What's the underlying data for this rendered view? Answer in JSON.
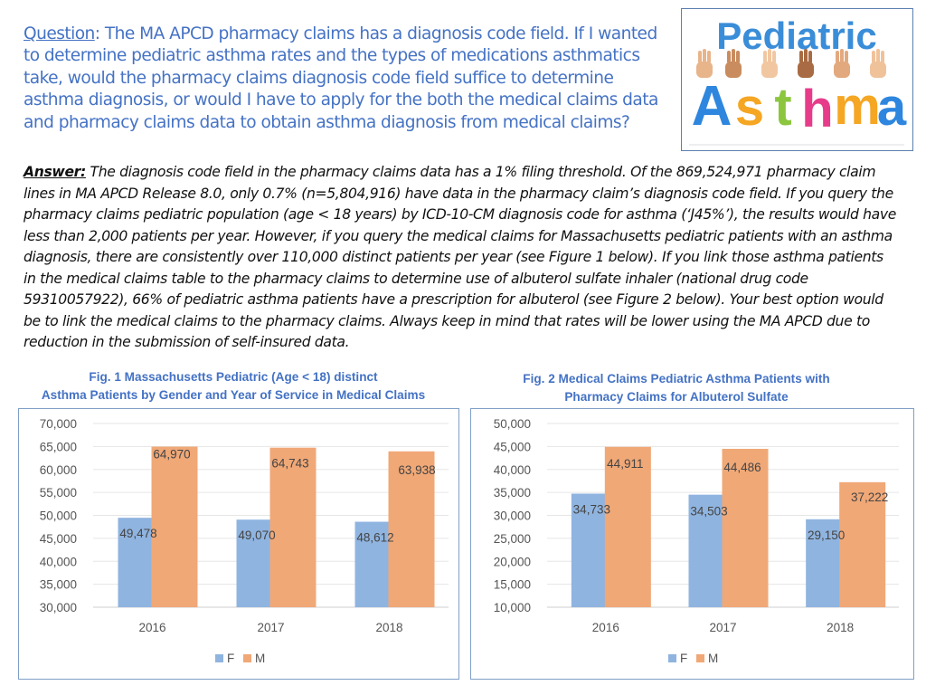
{
  "question": {
    "lead": "Question",
    "text": ": The MA APCD pharmacy claims has a diagnosis code field. If I wanted to determine pediatric asthma rates and the types of medications asthmatics take, would the pharmacy claims diagnosis code field suffice to determine asthma diagnosis,  or would I have to apply for the both the medical claims data and pharmacy claims data to obtain asthma diagnosis from medical claims?"
  },
  "logo": {
    "line1": "Pediatric",
    "line2": [
      "A",
      "s",
      "t",
      "h",
      "m",
      "a"
    ],
    "colors": {
      "line1": "#3a8dd8",
      "A": "#2e86de",
      "s": "#f5a623",
      "t": "#8cc63f",
      "h": "#e63c8a",
      "m": "#f5a623",
      "a": "#2e86de"
    }
  },
  "answer": {
    "lead": "Answer:",
    "text": " The diagnosis code field in the pharmacy claims data has a 1% filing threshold. Of the 869,524,971 pharmacy claim lines in MA APCD Release 8.0, only 0.7% (n=5,804,916) have data in the pharmacy claim’s diagnosis code field.  If you query the pharmacy claims pediatric population (age < 18 years) by ICD-10-CM diagnosis code for asthma (‘J45%’), the results would have less than 2,000 patients per year. However, if you query the medical claims for Massachusetts pediatric patients with an asthma diagnosis, there are consistently over 110,000 distinct patients per year (see Figure 1 below).  If you link those asthma patients in the medical claims table to the pharmacy claims to determine use of albuterol sulfate inhaler (national drug code 59310057922), 66% of pediatric asthma patients have a prescription for albuterol (see Figure 2 below). Your best option would be to link the medical claims to the pharmacy claims. Always keep in mind that rates will be lower using the MA APCD due to reduction in the submission of self-insured data."
  },
  "figures": [
    {
      "title_line1": "Fig. 1 Massachusetts Pediatric (Age < 18) distinct",
      "title_line2": "Asthma Patients by Gender and Year of Service in Medical Claims"
    },
    {
      "title_line1": "Fig. 2 Medical Claims Pediatric Asthma Patients with",
      "title_line2": "Pharmacy Claims for Albuterol Sulfate"
    }
  ],
  "chart_data": [
    {
      "type": "bar",
      "title": "Fig. 1 Massachusetts Pediatric (Age < 18) distinct Asthma Patients by Gender and Year of Service in Medical Claims",
      "categories": [
        "2016",
        "2017",
        "2018"
      ],
      "series": [
        {
          "name": "F",
          "values": [
            49478,
            49070,
            48612
          ],
          "labels": [
            "49,478",
            "49,070",
            "48,612"
          ],
          "color": "#8fb4e0"
        },
        {
          "name": "M",
          "values": [
            64970,
            64743,
            63938
          ],
          "labels": [
            "64,970",
            "64,743",
            "63,938"
          ],
          "color": "#f0a877"
        }
      ],
      "ylim": [
        30000,
        70000
      ],
      "yticks": [
        30000,
        35000,
        40000,
        45000,
        50000,
        55000,
        60000,
        65000,
        70000
      ],
      "ytick_labels": [
        "30,000",
        "35,000",
        "40,000",
        "45,000",
        "50,000",
        "55,000",
        "60,000",
        "65,000",
        "70,000"
      ],
      "grid": true,
      "legend": "bottom"
    },
    {
      "type": "bar",
      "title": "Fig. 2 Medical Claims Pediatric Asthma Patients with Pharmacy Claims for Albuterol Sulfate",
      "categories": [
        "2016",
        "2017",
        "2018"
      ],
      "series": [
        {
          "name": "F",
          "values": [
            34733,
            34503,
            29150
          ],
          "labels": [
            "34,733",
            "34,503",
            "29,150"
          ],
          "color": "#8fb4e0"
        },
        {
          "name": "M",
          "values": [
            44911,
            44486,
            37222
          ],
          "labels": [
            "44,911",
            "44,486",
            "37,222"
          ],
          "color": "#f0a877"
        }
      ],
      "ylim": [
        10000,
        50000
      ],
      "yticks": [
        10000,
        15000,
        20000,
        25000,
        30000,
        35000,
        40000,
        45000,
        50000
      ],
      "ytick_labels": [
        "10,000",
        "15,000",
        "20,000",
        "25,000",
        "30,000",
        "35,000",
        "40,000",
        "45,000",
        "50,000"
      ],
      "grid": true,
      "legend": "bottom"
    }
  ]
}
